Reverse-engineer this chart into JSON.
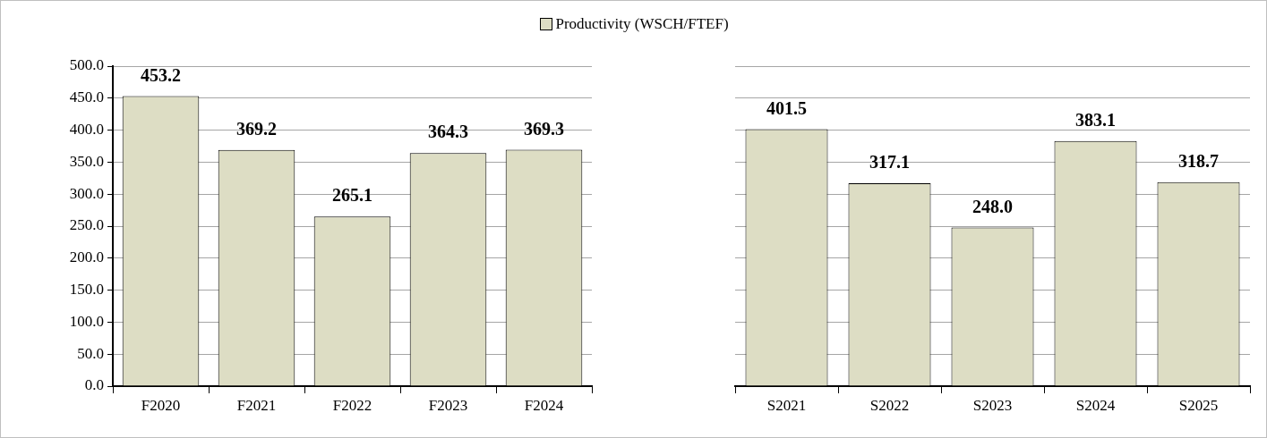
{
  "chart_data": [
    {
      "type": "bar",
      "categories": [
        "F2020",
        "F2021",
        "F2022",
        "F2023",
        "F2024"
      ],
      "series": [
        {
          "name": "Productivity (WSCH/FTEF)",
          "color": "#ddddc4",
          "values": [
            453.2,
            369.2,
            265.1,
            364.3,
            369.3
          ],
          "value_labels": [
            "453.2",
            "369.2",
            "265.1",
            "364.3",
            "369.3"
          ]
        }
      ],
      "ylim": [
        0,
        500
      ],
      "yticks": [
        {
          "value": 0,
          "label": "0.0"
        },
        {
          "value": 50,
          "label": "50.0"
        },
        {
          "value": 100,
          "label": "100.0"
        },
        {
          "value": 150,
          "label": "150.0"
        },
        {
          "value": 200,
          "label": "200.0"
        },
        {
          "value": 250,
          "label": "250.0"
        },
        {
          "value": 300,
          "label": "300.0"
        },
        {
          "value": 350,
          "label": "350.0"
        },
        {
          "value": 400,
          "label": "400.0"
        },
        {
          "value": 450,
          "label": "450.0"
        },
        {
          "value": 500,
          "label": "500.0"
        }
      ],
      "grid": "y",
      "legend": "top"
    },
    {
      "type": "bar",
      "categories": [
        "S2021",
        "S2022",
        "S2023",
        "S2024",
        "S2025"
      ],
      "series": [
        {
          "color": "#ddddc4",
          "values": [
            401.5,
            317.1,
            248.0,
            383.1,
            318.7
          ],
          "value_labels": [
            "401.5",
            "317.1",
            "248.0",
            "383.1",
            "318.7"
          ]
        }
      ],
      "ylim": [
        0,
        500
      ],
      "yticks": [
        0,
        50,
        100,
        150,
        200,
        250,
        300,
        350,
        400,
        450,
        500
      ],
      "grid": "y",
      "tick_labels": "x"
    }
  ]
}
